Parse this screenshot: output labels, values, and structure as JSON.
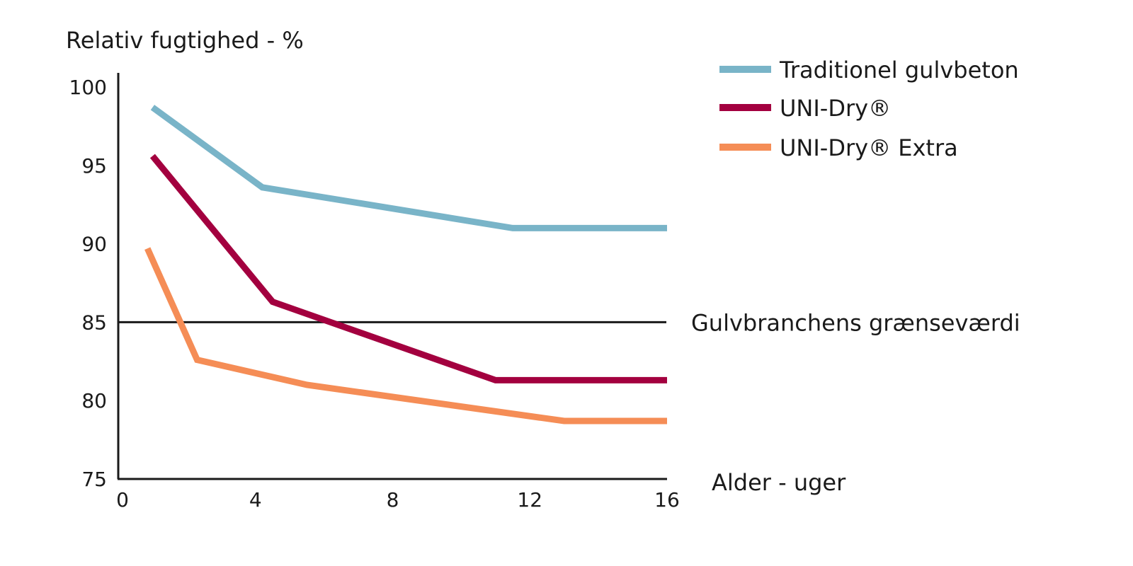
{
  "chart_data": {
    "type": "line",
    "title": "",
    "ylabel": "Relativ fugtighed - %",
    "xlabel": "Alder - uger",
    "xlim": [
      0,
      16
    ],
    "ylim": [
      75,
      100
    ],
    "x_ticks": [
      "0",
      "4",
      "8",
      "12",
      "16"
    ],
    "y_ticks": [
      "75",
      "80",
      "85",
      "90",
      "95",
      "100"
    ],
    "grid": false,
    "legend_position": "top-right",
    "series": [
      {
        "name": "Traditionel gulvbeton",
        "color": "#79b4c8",
        "points": [
          [
            1,
            98.7
          ],
          [
            4.2,
            93.6
          ],
          [
            11.5,
            91
          ],
          [
            16,
            91
          ]
        ]
      },
      {
        "name": "UNI-Dry®",
        "color": "#a3003f",
        "points": [
          [
            1,
            95.6
          ],
          [
            4.5,
            86.3
          ],
          [
            11,
            81.3
          ],
          [
            16,
            81.3
          ]
        ]
      },
      {
        "name": "UNI-Dry® Extra",
        "color": "#f58d56",
        "points": [
          [
            0.85,
            89.7
          ],
          [
            2.3,
            82.6
          ],
          [
            5.5,
            81
          ],
          [
            13,
            78.7
          ],
          [
            16,
            78.7
          ]
        ]
      }
    ],
    "reference_line": {
      "value": 85,
      "label": "Gulvbranchens grænseværdi",
      "color": "#1a1a1a"
    }
  }
}
